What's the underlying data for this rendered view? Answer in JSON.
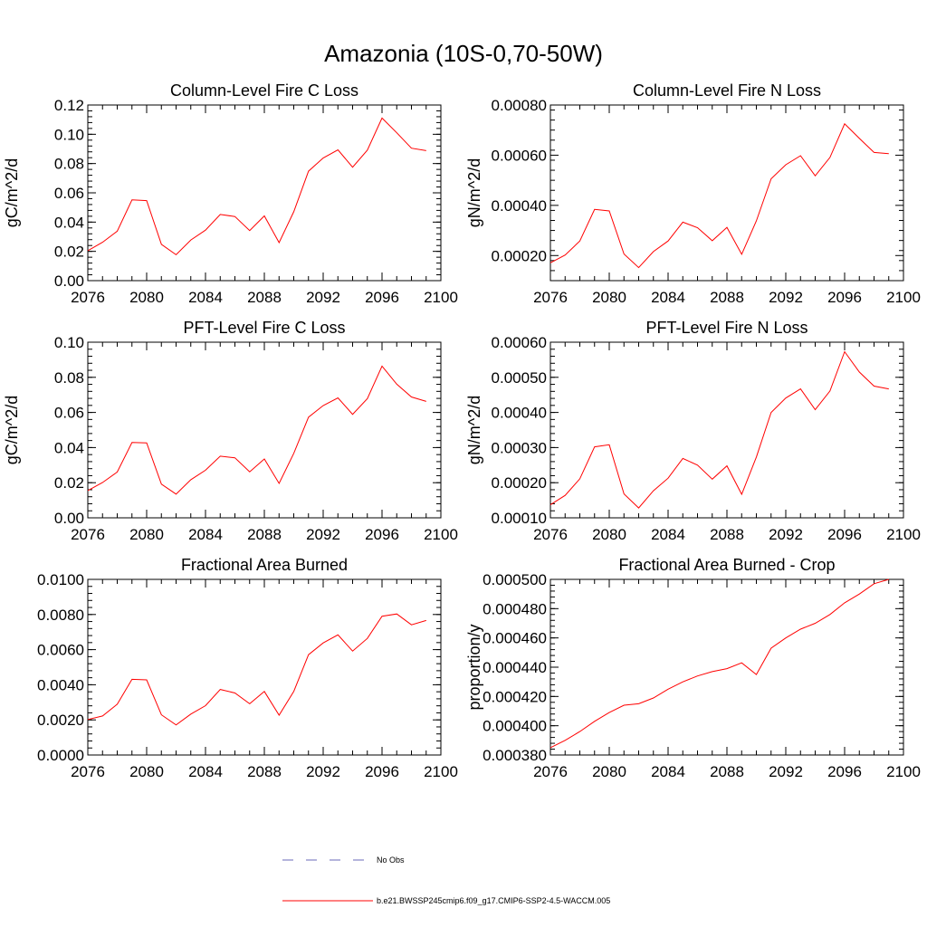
{
  "page_title": "Amazonia (10S-0,70-50W)",
  "colors": {
    "model_line": "#ff0000",
    "obs_line": "#6a6ab8",
    "axis": "#000000"
  },
  "legend": {
    "obs_label": "No Obs",
    "model_label": "b.e21.BWSSP245cmip6.f09_g17.CMIP6-SSP2-4.5-WACCM.005"
  },
  "chart_data": [
    {
      "type": "line",
      "title": "Column-Level Fire C Loss",
      "ylabel": "gC/m^2/d",
      "xlim": [
        2076,
        2100
      ],
      "ylim": [
        0,
        0.12
      ],
      "x_ticks": [
        "2076",
        "2080",
        "2084",
        "2088",
        "2092",
        "2096",
        "2100"
      ],
      "y_ticks": [
        "0.00",
        "0.02",
        "0.04",
        "0.06",
        "0.08",
        "0.10",
        "0.12"
      ],
      "x": [
        2076,
        2077,
        2078,
        2079,
        2080,
        2081,
        2082,
        2083,
        2084,
        2085,
        2086,
        2087,
        2088,
        2089,
        2090,
        2091,
        2092,
        2093,
        2094,
        2095,
        2096,
        2097,
        2098,
        2099
      ],
      "values": [
        0.0205,
        0.0262,
        0.0338,
        0.0552,
        0.0547,
        0.0248,
        0.0177,
        0.0278,
        0.0345,
        0.0452,
        0.0438,
        0.0342,
        0.0442,
        0.026,
        0.0471,
        0.0748,
        0.0838,
        0.0894,
        0.0775,
        0.0892,
        0.1111,
        0.101,
        0.0905,
        0.0888
      ]
    },
    {
      "type": "line",
      "title": "Column-Level Fire N Loss",
      "ylabel": "gN/m^2/d",
      "xlim": [
        2076,
        2100
      ],
      "ylim": [
        0.0001,
        0.0008
      ],
      "x_ticks": [
        "2076",
        "2080",
        "2084",
        "2088",
        "2092",
        "2096",
        "2100"
      ],
      "y_ticks": [
        "0.00020",
        "0.00040",
        "0.00060",
        "0.00080"
      ],
      "y_tick_values": [
        0.0002,
        0.0004,
        0.0006,
        0.0008
      ],
      "x": [
        2076,
        2077,
        2078,
        2079,
        2080,
        2081,
        2082,
        2083,
        2084,
        2085,
        2086,
        2087,
        2088,
        2089,
        2090,
        2091,
        2092,
        2093,
        2094,
        2095,
        2096,
        2097,
        2098,
        2099
      ],
      "values": [
        0.000171,
        0.000202,
        0.000258,
        0.000384,
        0.000378,
        0.000206,
        0.000152,
        0.000216,
        0.000258,
        0.000333,
        0.000311,
        0.000259,
        0.000312,
        0.000205,
        0.000338,
        0.000506,
        0.000562,
        0.000598,
        0.000518,
        0.000591,
        0.000725,
        0.000667,
        0.000611,
        0.000606
      ]
    },
    {
      "type": "line",
      "title": "PFT-Level Fire C Loss",
      "ylabel": "gC/m^2/d",
      "xlim": [
        2076,
        2100
      ],
      "ylim": [
        0,
        0.1
      ],
      "x_ticks": [
        "2076",
        "2080",
        "2084",
        "2088",
        "2092",
        "2096",
        "2100"
      ],
      "y_ticks": [
        "0.00",
        "0.02",
        "0.04",
        "0.06",
        "0.08",
        "0.10"
      ],
      "x": [
        2076,
        2077,
        2078,
        2079,
        2080,
        2081,
        2082,
        2083,
        2084,
        2085,
        2086,
        2087,
        2088,
        2089,
        2090,
        2091,
        2092,
        2093,
        2094,
        2095,
        2096,
        2097,
        2098,
        2099
      ],
      "values": [
        0.0155,
        0.0201,
        0.0261,
        0.0429,
        0.0427,
        0.0192,
        0.0135,
        0.0217,
        0.0271,
        0.0351,
        0.0342,
        0.0262,
        0.0335,
        0.0196,
        0.0367,
        0.0573,
        0.0639,
        0.0683,
        0.0589,
        0.0679,
        0.0864,
        0.0761,
        0.0688,
        0.0663
      ]
    },
    {
      "type": "line",
      "title": "PFT-Level Fire N Loss",
      "ylabel": "gN/m^2/d",
      "xlim": [
        2076,
        2100
      ],
      "ylim": [
        0.0001,
        0.0006
      ],
      "x_ticks": [
        "2076",
        "2080",
        "2084",
        "2088",
        "2092",
        "2096",
        "2100"
      ],
      "y_ticks": [
        "0.00010",
        "0.00020",
        "0.00030",
        "0.00040",
        "0.00050",
        "0.00060"
      ],
      "y_tick_values": [
        0.0001,
        0.0002,
        0.0003,
        0.0004,
        0.0005,
        0.0006
      ],
      "x": [
        2076,
        2077,
        2078,
        2079,
        2080,
        2081,
        2082,
        2083,
        2084,
        2085,
        2086,
        2087,
        2088,
        2089,
        2090,
        2091,
        2092,
        2093,
        2094,
        2095,
        2096,
        2097,
        2098,
        2099
      ],
      "values": [
        0.000137,
        0.000164,
        0.000211,
        0.000302,
        0.000308,
        0.000168,
        0.000128,
        0.000177,
        0.000213,
        0.000269,
        0.00025,
        0.00021,
        0.000248,
        0.000167,
        0.000273,
        0.0004,
        0.000441,
        0.000467,
        0.000408,
        0.000461,
        0.000573,
        0.000515,
        0.000475,
        0.000467
      ]
    },
    {
      "type": "line",
      "title": "Fractional Area Burned",
      "ylabel": "",
      "xlim": [
        2076,
        2100
      ],
      "ylim": [
        0,
        0.01
      ],
      "x_ticks": [
        "2076",
        "2080",
        "2084",
        "2088",
        "2092",
        "2096",
        "2100"
      ],
      "y_ticks": [
        "0.0000",
        "0.0020",
        "0.0040",
        "0.0060",
        "0.0080",
        "0.0100"
      ],
      "x": [
        2076,
        2077,
        2078,
        2079,
        2080,
        2081,
        2082,
        2083,
        2084,
        2085,
        2086,
        2087,
        2088,
        2089,
        2090,
        2091,
        2092,
        2093,
        2094,
        2095,
        2096,
        2097,
        2098,
        2099
      ],
      "values": [
        0.00202,
        0.00222,
        0.00289,
        0.00431,
        0.00428,
        0.00229,
        0.00171,
        0.00233,
        0.00281,
        0.00373,
        0.00353,
        0.00292,
        0.00362,
        0.00227,
        0.00362,
        0.00571,
        0.00638,
        0.00684,
        0.00592,
        0.00664,
        0.0079,
        0.00803,
        0.00741,
        0.00766
      ]
    },
    {
      "type": "line",
      "title": "Fractional Area Burned - Crop",
      "ylabel": "proportion/y",
      "xlim": [
        2076,
        2100
      ],
      "ylim": [
        0.00038,
        0.0005
      ],
      "x_ticks": [
        "2076",
        "2080",
        "2084",
        "2088",
        "2092",
        "2096",
        "2100"
      ],
      "y_ticks": [
        "0.000380",
        "0.000400",
        "0.000420",
        "0.000440",
        "0.000460",
        "0.000480",
        "0.000500"
      ],
      "x": [
        2076,
        2077,
        2078,
        2079,
        2080,
        2081,
        2082,
        2083,
        2084,
        2085,
        2086,
        2087,
        2088,
        2089,
        2090,
        2091,
        2092,
        2093,
        2094,
        2095,
        2096,
        2097,
        2098,
        2099
      ],
      "values": [
        0.000385,
        0.00039,
        0.000396,
        0.000403,
        0.000409,
        0.000414,
        0.000415,
        0.000419,
        0.000425,
        0.00043,
        0.000434,
        0.000437,
        0.000439,
        0.000443,
        0.000435,
        0.000453,
        0.00046,
        0.000466,
        0.00047,
        0.000476,
        0.000484,
        0.00049,
        0.000497,
        0.0005
      ]
    }
  ]
}
